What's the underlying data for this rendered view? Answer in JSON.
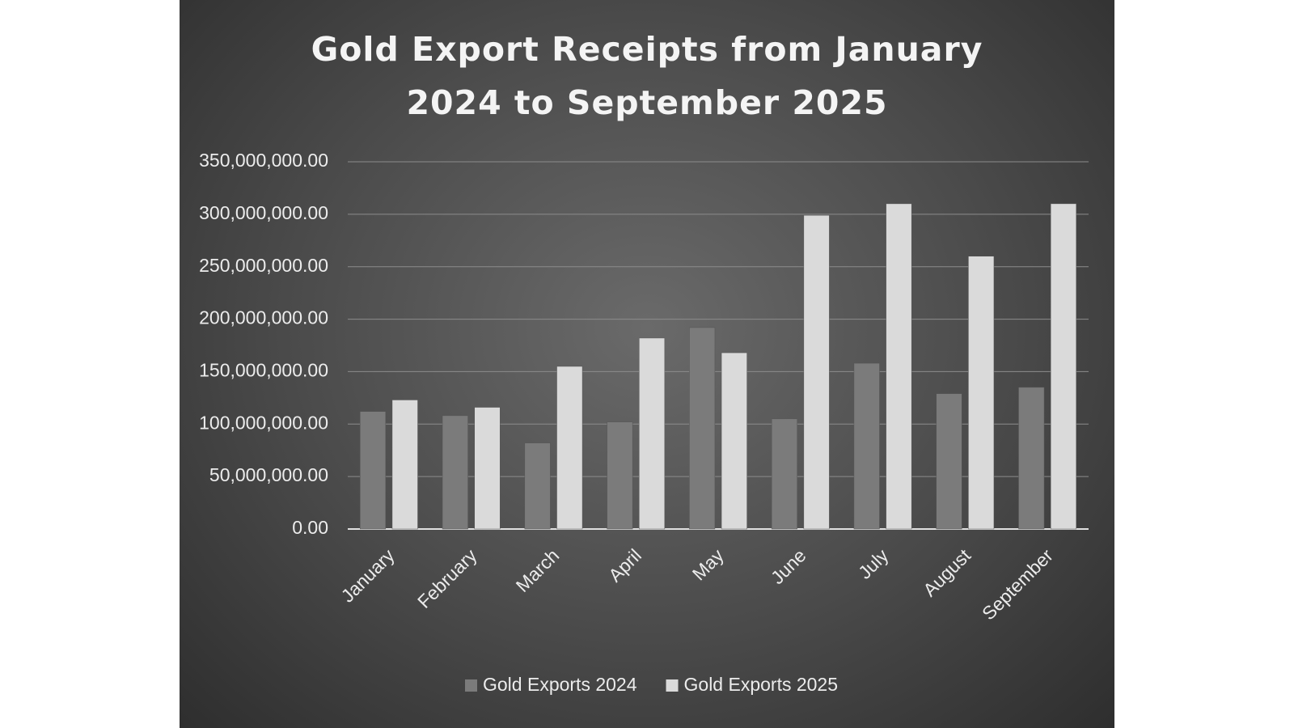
{
  "chart_data": {
    "type": "bar",
    "title": "Gold Export Receipts from January 2024 to September 2025",
    "categories": [
      "January",
      "February",
      "March",
      "April",
      "May",
      "June",
      "July",
      "August",
      "September"
    ],
    "series": [
      {
        "name": "Gold Exports 2024",
        "color": "#7b7b7b",
        "values": [
          112000000,
          108000000,
          82000000,
          102000000,
          192000000,
          105000000,
          158000000,
          129000000,
          135000000
        ]
      },
      {
        "name": "Gold Exports 2025",
        "color": "#dadada",
        "values": [
          123000000,
          116000000,
          155000000,
          182000000,
          168000000,
          299000000,
          310000000,
          260000000,
          310000000
        ]
      }
    ],
    "ylim": [
      0,
      350000000
    ],
    "yticks": [
      {
        "value": 0,
        "label": "0.00"
      },
      {
        "value": 50000000,
        "label": "50,000,000.00"
      },
      {
        "value": 100000000,
        "label": "100,000,000.00"
      },
      {
        "value": 150000000,
        "label": "150,000,000.00"
      },
      {
        "value": 200000000,
        "label": "200,000,000.00"
      },
      {
        "value": 250000000,
        "label": "250,000,000.00"
      },
      {
        "value": 300000000,
        "label": "300,000,000.00"
      },
      {
        "value": 350000000,
        "label": "350,000,000.00"
      }
    ],
    "grid": true,
    "legend": "bottom"
  }
}
